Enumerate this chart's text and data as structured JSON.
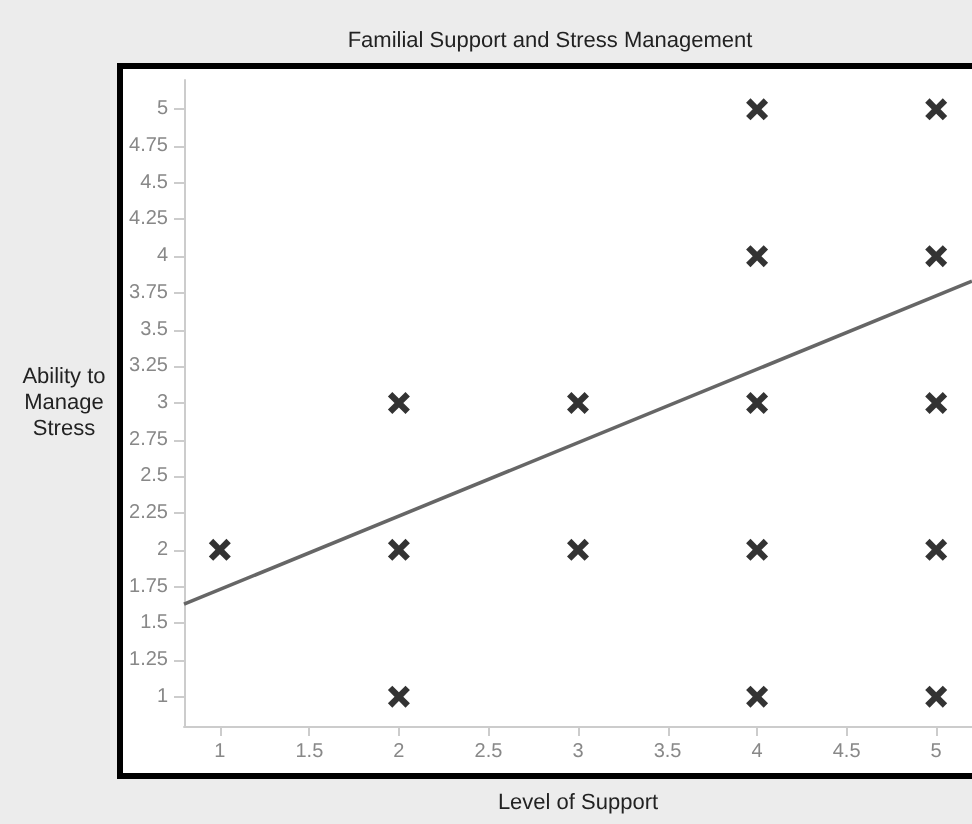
{
  "chart_data": {
    "type": "scatter",
    "title": "Familial Support and Stress Management",
    "xlabel": "Level of Support",
    "ylabel": "Ability to\nManage\nStress",
    "series": [
      {
        "color": "#000000",
        "marker": "cross",
        "x": [
          1,
          2,
          2,
          2,
          3,
          3,
          4,
          4,
          4,
          4,
          4,
          5,
          5,
          5,
          5,
          5
        ],
        "values": [
          2,
          1,
          2,
          3,
          2,
          3,
          1,
          2,
          3,
          4,
          5,
          1,
          2,
          3,
          4,
          5
        ]
      },
      {
        "type": "line",
        "color": "#666666",
        "x": [
          0.8,
          5.2
        ],
        "values": [
          1.63,
          3.83
        ]
      }
    ],
    "grid": false,
    "xlim": [
      0.8,
      5.2
    ],
    "xticks": [
      1,
      1.5,
      2,
      2.5,
      3,
      3.5,
      4,
      4.5,
      5
    ],
    "ylim": [
      0.8,
      5.2
    ],
    "yticks": [
      1,
      1.25,
      1.5,
      1.75,
      2,
      2.25,
      2.5,
      2.75,
      3,
      3.25,
      3.5,
      3.75,
      4,
      4.25,
      4.5,
      4.75,
      5
    ]
  }
}
